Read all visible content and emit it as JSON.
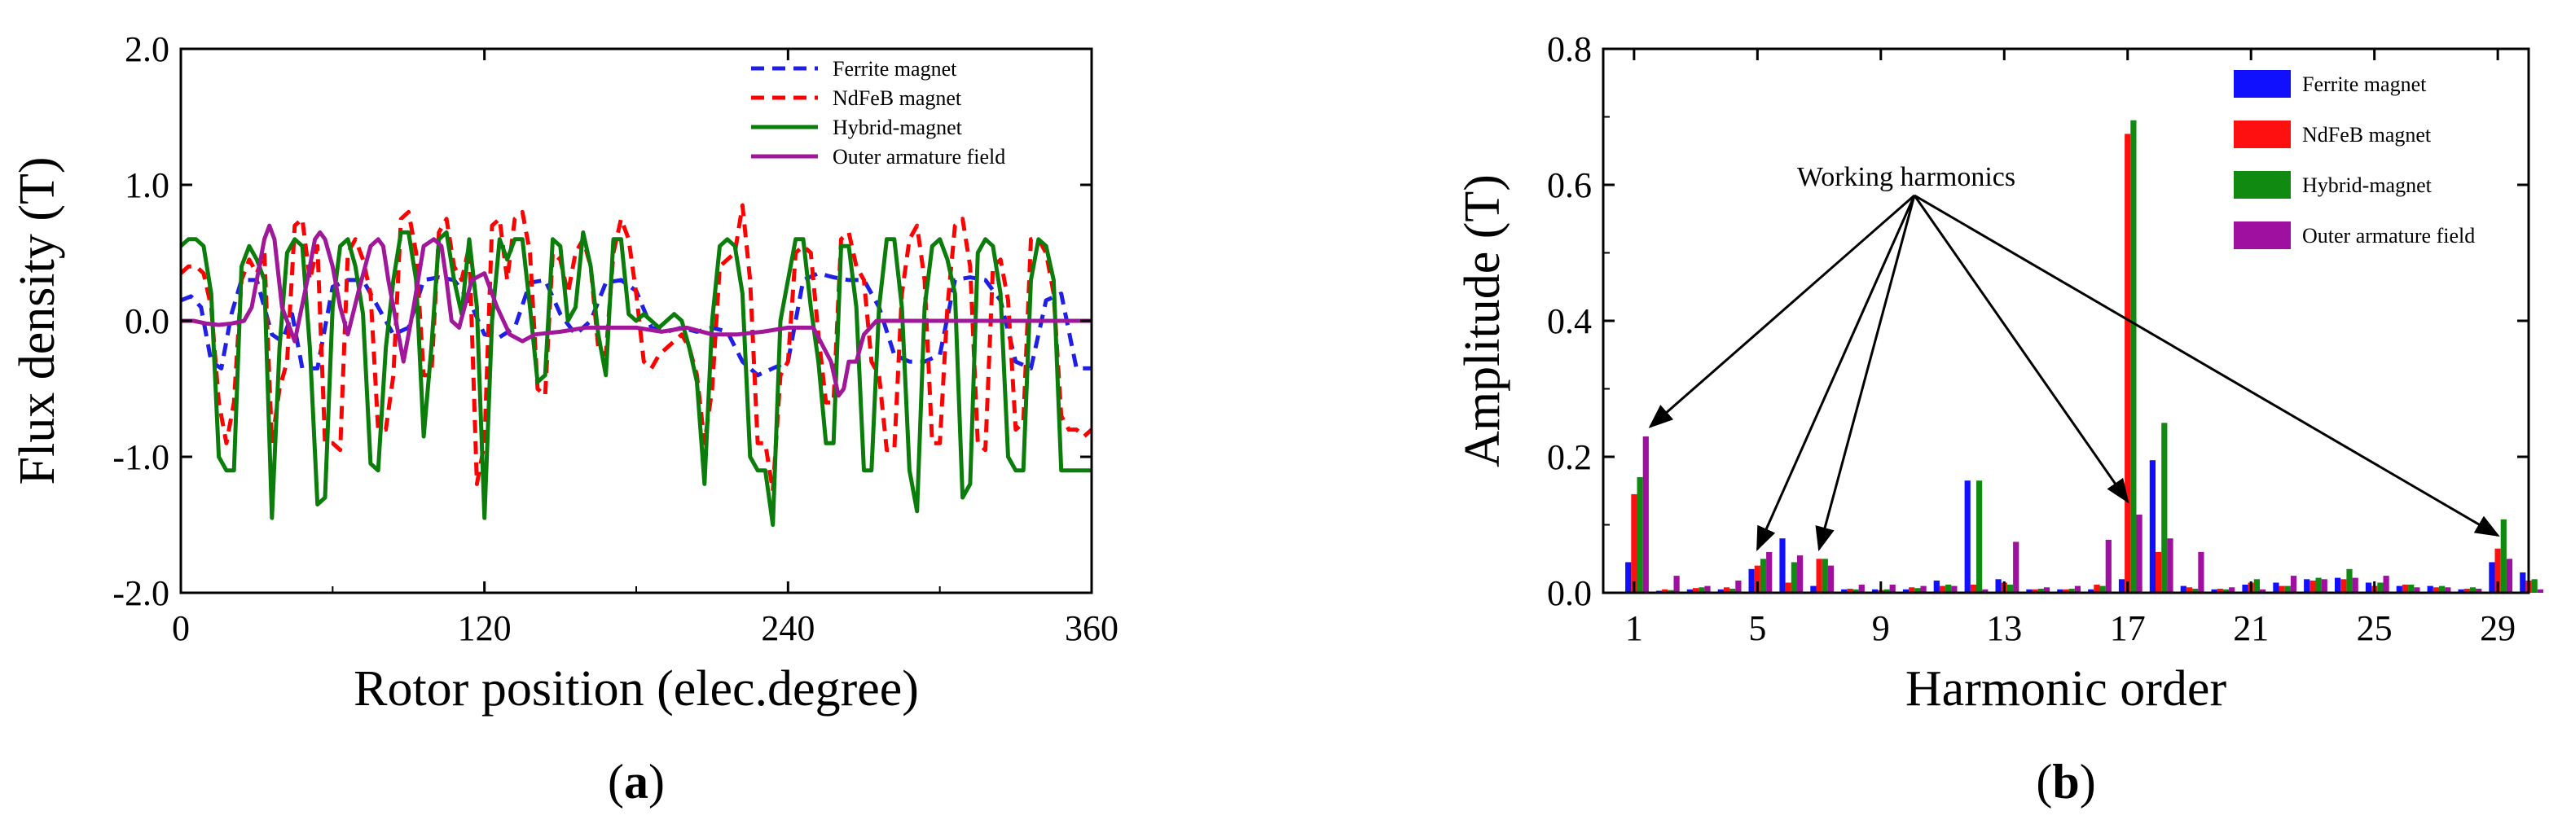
{
  "chart_data": [
    {
      "panel": "(a)",
      "panel_label": "a",
      "type": "line",
      "title": "",
      "xlabel": "Rotor position (elec.degree)",
      "ylabel": "Flux density (T)",
      "xlim": [
        0,
        360
      ],
      "ylim": [
        -2,
        2
      ],
      "x_ticks": [
        0,
        120,
        240,
        360
      ],
      "x_tick_labels": [
        "0",
        "120",
        "240",
        "360"
      ],
      "y_ticks": [
        2,
        1,
        0,
        -1,
        -2
      ],
      "y_tick_labels": [
        "2.0",
        "1.0",
        "0.0",
        "-1.0",
        "-2.0"
      ],
      "grid": false,
      "legend_position": "top-right",
      "series": [
        {
          "name": "Ferrite magnet",
          "color": "#1f1fe6",
          "style": "dashed",
          "x": [
            0,
            4,
            8,
            12,
            16,
            20,
            24,
            30,
            36,
            40,
            44,
            48,
            54,
            60,
            66,
            72,
            78,
            84,
            90,
            96,
            102,
            108,
            114,
            120,
            126,
            132,
            138,
            144,
            150,
            156,
            162,
            168,
            174,
            180,
            186,
            192,
            198,
            204,
            210,
            216,
            222,
            228,
            234,
            240,
            246,
            252,
            258,
            264,
            270,
            276,
            282,
            288,
            294,
            300,
            306,
            312,
            318,
            324,
            330,
            336,
            342,
            348,
            354,
            360
          ],
          "y": [
            0.15,
            0.18,
            0.1,
            -0.3,
            -0.35,
            0.05,
            0.3,
            0.3,
            -0.1,
            -0.15,
            0.05,
            -0.35,
            -0.35,
            0.25,
            0.3,
            0.3,
            0.1,
            -0.1,
            -0.05,
            0.3,
            0.32,
            0.3,
            0.15,
            -0.1,
            -0.12,
            -0.05,
            0.28,
            0.3,
            0.05,
            -0.1,
            0.0,
            0.28,
            0.3,
            0.22,
            -0.05,
            -0.08,
            -0.05,
            -0.08,
            -0.05,
            -0.08,
            -0.3,
            -0.4,
            -0.35,
            -0.3,
            0.3,
            0.35,
            0.32,
            0.3,
            0.3,
            0.1,
            -0.25,
            -0.3,
            -0.3,
            -0.25,
            0.3,
            0.32,
            0.3,
            0.15,
            -0.3,
            -0.35,
            0.15,
            0.2,
            -0.35,
            -0.35
          ]
        },
        {
          "name": "NdFeB magnet",
          "color": "#ff0000",
          "style": "dashed",
          "x": [
            0,
            3,
            6,
            9,
            12,
            15,
            18,
            21,
            24,
            27,
            30,
            33,
            36,
            39,
            42,
            45,
            48,
            51,
            54,
            57,
            60,
            63,
            66,
            69,
            72,
            75,
            78,
            81,
            84,
            87,
            90,
            93,
            96,
            99,
            102,
            105,
            108,
            111,
            114,
            117,
            120,
            123,
            126,
            129,
            132,
            135,
            138,
            141,
            144,
            147,
            150,
            153,
            156,
            159,
            162,
            165,
            168,
            171,
            174,
            177,
            180,
            183,
            186,
            189,
            192,
            195,
            198,
            201,
            204,
            207,
            210,
            213,
            216,
            219,
            222,
            225,
            228,
            231,
            234,
            237,
            240,
            243,
            246,
            249,
            252,
            255,
            258,
            261,
            264,
            267,
            270,
            273,
            276,
            279,
            282,
            285,
            288,
            291,
            294,
            297,
            300,
            303,
            306,
            309,
            312,
            315,
            318,
            321,
            324,
            327,
            330,
            333,
            336,
            339,
            342,
            345,
            348,
            351,
            354,
            357,
            360
          ],
          "y": [
            0.35,
            0.4,
            0.4,
            0.35,
            0.1,
            -0.6,
            -0.9,
            -0.6,
            0.3,
            0.45,
            0.35,
            0.5,
            -0.9,
            -0.5,
            -0.3,
            0.7,
            0.75,
            0.3,
            0.55,
            -0.9,
            -0.9,
            -0.95,
            0.5,
            0.6,
            0.45,
            0.2,
            -0.8,
            -0.8,
            -0.4,
            0.75,
            0.8,
            0.5,
            -0.4,
            -0.4,
            0.65,
            0.75,
            0.4,
            0.3,
            0.55,
            -1.2,
            -0.9,
            0.7,
            0.75,
            0.3,
            0.75,
            0.8,
            0.5,
            -0.5,
            -0.55,
            0.5,
            0.45,
            0.2,
            0.5,
            0.6,
            0.4,
            -0.2,
            -0.25,
            0.5,
            0.75,
            0.6,
            0.2,
            -0.3,
            -0.35,
            -0.25,
            -0.2,
            -0.15,
            -0.1,
            -0.2,
            -0.4,
            -0.9,
            -0.5,
            0.4,
            0.45,
            0.5,
            0.85,
            0.3,
            -0.9,
            -0.9,
            -1.25,
            -0.4,
            -0.3,
            0.5,
            0.55,
            0.5,
            -0.1,
            -0.6,
            -0.6,
            0.6,
            0.65,
            0.4,
            0.3,
            -0.3,
            -0.4,
            -0.95,
            -0.95,
            0.2,
            0.6,
            0.7,
            0.3,
            -0.9,
            -0.9,
            0.1,
            0.7,
            0.75,
            0.4,
            -0.9,
            -0.95,
            0.4,
            0.45,
            0.15,
            -0.8,
            -0.75,
            0.6,
            0.6,
            0.5,
            0.2,
            -0.7,
            -0.8,
            -0.8,
            -0.85,
            -0.8
          ]
        },
        {
          "name": "Hybrid-magnet",
          "color": "#0a7d0a",
          "style": "solid",
          "x": [
            0,
            3,
            6,
            9,
            12,
            15,
            18,
            21,
            24,
            27,
            30,
            33,
            36,
            39,
            42,
            45,
            48,
            51,
            54,
            57,
            60,
            63,
            66,
            69,
            72,
            75,
            78,
            81,
            84,
            87,
            90,
            93,
            96,
            99,
            102,
            105,
            108,
            111,
            114,
            117,
            120,
            123,
            126,
            129,
            132,
            135,
            138,
            141,
            144,
            147,
            150,
            153,
            156,
            159,
            162,
            165,
            168,
            171,
            174,
            177,
            180,
            183,
            186,
            189,
            192,
            195,
            198,
            201,
            204,
            207,
            210,
            213,
            216,
            219,
            222,
            225,
            228,
            231,
            234,
            237,
            240,
            243,
            246,
            249,
            252,
            255,
            258,
            261,
            264,
            267,
            270,
            273,
            276,
            279,
            282,
            285,
            288,
            291,
            294,
            297,
            300,
            303,
            306,
            309,
            312,
            315,
            318,
            321,
            324,
            327,
            330,
            333,
            336,
            339,
            342,
            345,
            348,
            351,
            354,
            357,
            360
          ],
          "y": [
            0.55,
            0.6,
            0.6,
            0.55,
            0.2,
            -1.0,
            -1.1,
            -1.1,
            0.4,
            0.55,
            0.45,
            0.3,
            -1.45,
            -0.2,
            0.5,
            0.6,
            0.55,
            -0.2,
            -1.35,
            -1.3,
            0.1,
            0.55,
            0.6,
            0.4,
            0.05,
            -1.05,
            -1.1,
            -0.2,
            0.3,
            0.65,
            0.65,
            0.3,
            -0.85,
            -0.2,
            0.6,
            0.65,
            0.3,
            0.05,
            0.6,
            0.1,
            -1.45,
            0.0,
            0.6,
            0.45,
            0.6,
            0.6,
            0.1,
            -0.45,
            -0.4,
            0.6,
            0.55,
            0.0,
            0.1,
            0.65,
            0.4,
            -0.1,
            -0.4,
            0.6,
            0.6,
            0.05,
            0.0,
            0.05,
            0.0,
            -0.05,
            0.0,
            0.05,
            0.0,
            -0.2,
            -0.45,
            -1.2,
            0.0,
            0.55,
            0.6,
            0.55,
            0.2,
            -1.0,
            -1.1,
            -1.1,
            -1.5,
            0.0,
            0.3,
            0.6,
            0.6,
            0.1,
            -0.3,
            -0.9,
            -0.9,
            0.55,
            0.55,
            0.1,
            -1.1,
            -1.1,
            0.1,
            0.6,
            0.6,
            0.1,
            -1.1,
            -1.4,
            0.1,
            0.55,
            0.6,
            0.45,
            0.2,
            -1.3,
            -1.2,
            0.5,
            0.6,
            0.55,
            0.2,
            -1.0,
            -1.1,
            -1.1,
            0.3,
            0.6,
            0.55,
            0.3,
            -1.1,
            -1.1,
            -1.1,
            -1.1,
            -1.1
          ]
        },
        {
          "name": "Outer armature field",
          "color": "#a0179a",
          "style": "solid",
          "x": [
            0,
            5,
            10,
            15,
            20,
            25,
            28,
            31,
            33,
            35,
            37,
            40,
            45,
            50,
            53,
            55,
            57,
            60,
            63,
            66,
            70,
            75,
            78,
            80,
            82,
            85,
            88,
            92,
            96,
            100,
            103,
            105,
            107,
            110,
            115,
            120,
            125,
            130,
            135,
            140,
            150,
            160,
            170,
            180,
            190,
            200,
            210,
            220,
            230,
            240,
            250,
            257,
            260,
            262,
            264,
            267,
            270,
            275,
            280,
            290,
            300,
            310,
            320,
            330,
            340,
            350,
            360
          ],
          "y": [
            0.0,
            0.0,
            -0.02,
            -0.03,
            -0.02,
            0.0,
            0.1,
            0.4,
            0.6,
            0.7,
            0.6,
            0.1,
            -0.15,
            0.3,
            0.6,
            0.65,
            0.6,
            0.4,
            0.1,
            -0.1,
            0.2,
            0.55,
            0.6,
            0.55,
            0.3,
            0.0,
            -0.3,
            0.1,
            0.55,
            0.6,
            0.55,
            0.3,
            0.0,
            -0.05,
            0.3,
            0.35,
            0.1,
            -0.1,
            -0.15,
            -0.1,
            -0.08,
            -0.05,
            -0.05,
            -0.05,
            -0.08,
            -0.05,
            -0.1,
            -0.1,
            -0.08,
            -0.05,
            -0.05,
            -0.3,
            -0.55,
            -0.5,
            -0.3,
            -0.3,
            -0.1,
            0.0,
            0.0,
            0.0,
            0.0,
            0.0,
            0.0,
            0.0,
            0.0,
            0.0,
            0.0
          ]
        }
      ]
    },
    {
      "panel": "(b)",
      "panel_label": "b",
      "type": "bar",
      "title": "",
      "xlabel": "Harmonic order",
      "ylabel": "Amplitude (T)",
      "xlim": [
        0,
        30
      ],
      "ylim": [
        0,
        0.8
      ],
      "x_ticks": [
        1,
        5,
        9,
        13,
        17,
        21,
        25,
        29
      ],
      "x_tick_labels": [
        "1",
        "5",
        "9",
        "13",
        "17",
        "21",
        "25",
        "29"
      ],
      "y_ticks": [
        0.8,
        0.6,
        0.4,
        0.2,
        0.0
      ],
      "y_tick_labels": [
        "0.8",
        "0.6",
        "0.4",
        "0.2",
        "0.0"
      ],
      "grid": false,
      "legend_position": "top-right",
      "annotation": {
        "text": "Working harmonics",
        "targets": [
          {
            "harmonic": 1,
            "value": 0.23
          },
          {
            "harmonic": 5,
            "value": 0.05
          },
          {
            "harmonic": 7,
            "value": 0.05
          },
          {
            "harmonic": 17,
            "value": 0.12
          },
          {
            "harmonic": 29,
            "value": 0.07
          }
        ]
      },
      "categories": [
        1,
        2,
        3,
        4,
        5,
        6,
        7,
        8,
        9,
        10,
        11,
        12,
        13,
        14,
        15,
        16,
        17,
        18,
        19,
        20,
        21,
        22,
        23,
        24,
        25,
        26,
        27,
        28,
        29,
        30
      ],
      "series": [
        {
          "name": "Ferrite magnet",
          "color": "#1010ff",
          "values": [
            0.045,
            0.003,
            0.005,
            0.005,
            0.035,
            0.08,
            0.01,
            0.005,
            0.005,
            0.005,
            0.018,
            0.165,
            0.02,
            0.005,
            0.005,
            0.005,
            0.02,
            0.195,
            0.01,
            0.005,
            0.012,
            0.015,
            0.02,
            0.022,
            0.015,
            0.01,
            0.01,
            0.005,
            0.045,
            0.03
          ]
        },
        {
          "name": "NdFeB magnet",
          "color": "#ff1010",
          "values": [
            0.145,
            0.005,
            0.007,
            0.008,
            0.04,
            0.015,
            0.05,
            0.006,
            0.004,
            0.008,
            0.01,
            0.012,
            0.015,
            0.005,
            0.005,
            0.012,
            0.675,
            0.06,
            0.008,
            0.006,
            0.015,
            0.01,
            0.018,
            0.02,
            0.01,
            0.012,
            0.008,
            0.006,
            0.065,
            0.018
          ]
        },
        {
          "name": "Hybrid-magnet",
          "color": "#108a10",
          "values": [
            0.17,
            0.004,
            0.008,
            0.006,
            0.05,
            0.045,
            0.05,
            0.005,
            0.005,
            0.007,
            0.012,
            0.165,
            0.012,
            0.006,
            0.006,
            0.01,
            0.695,
            0.25,
            0.006,
            0.005,
            0.02,
            0.01,
            0.022,
            0.035,
            0.015,
            0.012,
            0.01,
            0.008,
            0.108,
            0.02
          ]
        },
        {
          "name": "Outer armature field",
          "color": "#a010a0",
          "values": [
            0.23,
            0.025,
            0.01,
            0.018,
            0.06,
            0.055,
            0.04,
            0.012,
            0.012,
            0.01,
            0.01,
            0.005,
            0.075,
            0.008,
            0.01,
            0.078,
            0.115,
            0.08,
            0.06,
            0.008,
            0.005,
            0.025,
            0.02,
            0.022,
            0.025,
            0.008,
            0.008,
            0.006,
            0.05,
            0.005
          ]
        }
      ]
    }
  ]
}
